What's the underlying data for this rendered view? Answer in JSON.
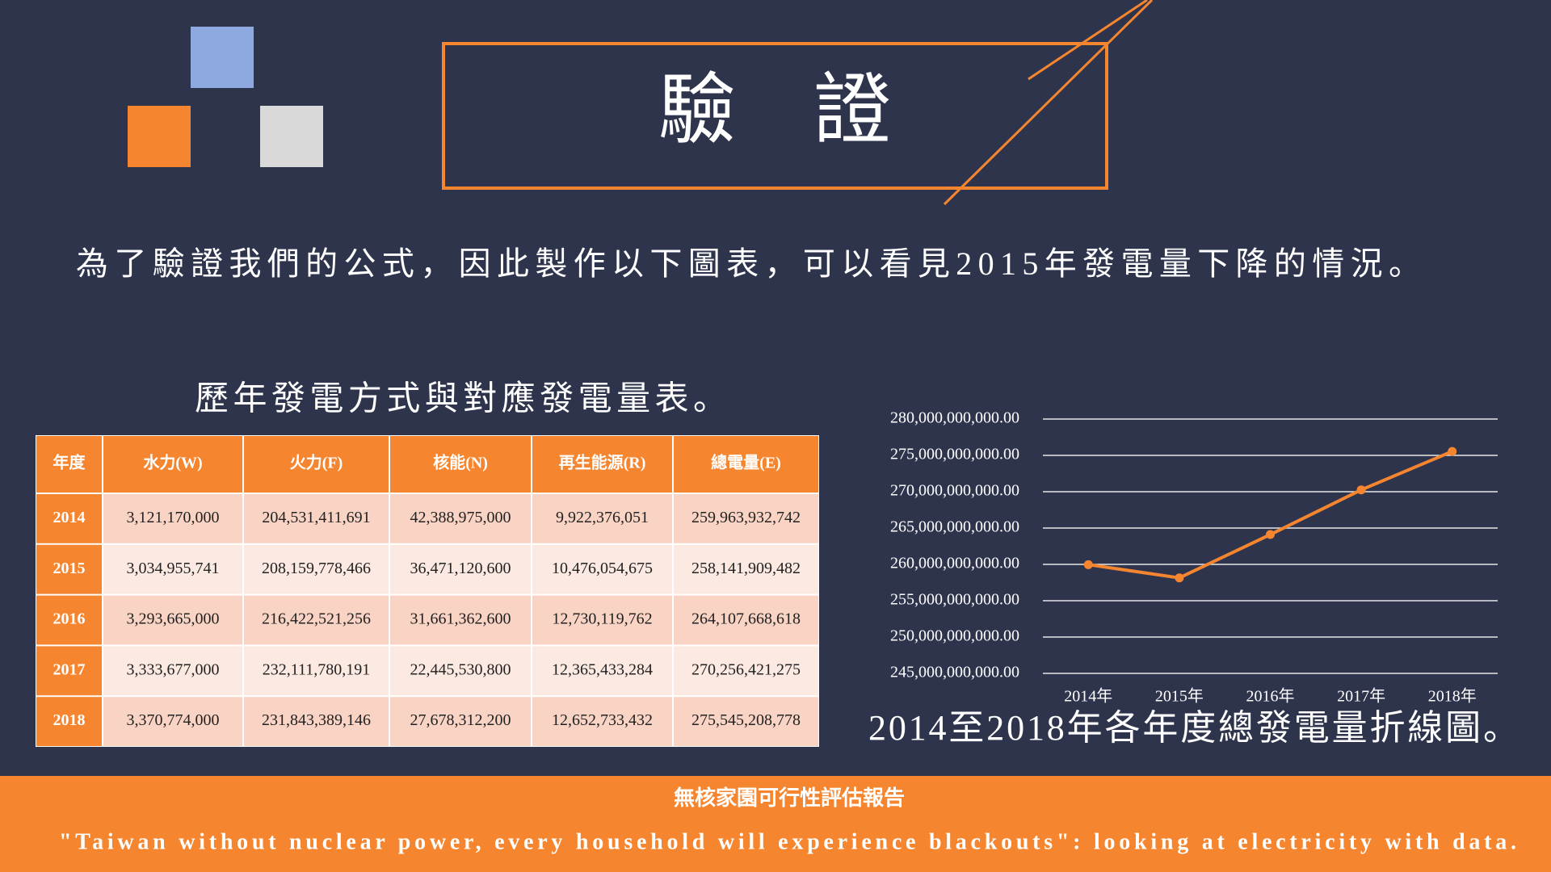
{
  "title": "驗　證",
  "intro": "為了驗證我們的公式，因此製作以下圖表，可以看見2015年發電量下降的情況。",
  "table": {
    "title": "歷年發電方式與對應發電量表。",
    "columns": [
      "年度",
      "水力(W)",
      "火力(F)",
      "核能(N)",
      "再生能源(R)",
      "總電量(E)"
    ],
    "rows": [
      [
        "2014",
        "3,121,170,000",
        "204,531,411,691",
        "42,388,975,000",
        "9,922,376,051",
        "259,963,932,742"
      ],
      [
        "2015",
        "3,034,955,741",
        "208,159,778,466",
        "36,471,120,600",
        "10,476,054,675",
        "258,141,909,482"
      ],
      [
        "2016",
        "3,293,665,000",
        "216,422,521,256",
        "31,661,362,600",
        "12,730,119,762",
        "264,107,668,618"
      ],
      [
        "2017",
        "3,333,677,000",
        "232,111,780,191",
        "22,445,530,800",
        "12,365,433,284",
        "270,256,421,275"
      ],
      [
        "2018",
        "3,370,774,000",
        "231,843,389,146",
        "27,678,312,200",
        "12,652,733,432",
        "275,545,208,778"
      ]
    ]
  },
  "chart_data": {
    "type": "line",
    "title": "2014至2018年各年度總發電量折線圖。",
    "categories": [
      "2014年",
      "2015年",
      "2016年",
      "2017年",
      "2018年"
    ],
    "values": [
      259963932742,
      258141909482,
      264107668618,
      270256421275,
      275545208778
    ],
    "color": "#f5862f",
    "ylim": [
      245000000000,
      280000000000
    ],
    "yticks": [
      {
        "value": 245000000000,
        "label": "245,000,000,000.00"
      },
      {
        "value": 250000000000,
        "label": "250,000,000,000.00"
      },
      {
        "value": 255000000000,
        "label": "255,000,000,000.00"
      },
      {
        "value": 260000000000,
        "label": "260,000,000,000.00"
      },
      {
        "value": 265000000000,
        "label": "265,000,000,000.00"
      },
      {
        "value": 270000000000,
        "label": "270,000,000,000.00"
      },
      {
        "value": 275000000000,
        "label": "275,000,000,000.00"
      },
      {
        "value": 280000000000,
        "label": "280,000,000,000.00"
      }
    ],
    "grid": true
  },
  "footer": {
    "title": "無核家園可行性評估報告",
    "subtitle": "\"Taiwan without nuclear power, every household will experience blackouts\": looking at electricity with data."
  }
}
